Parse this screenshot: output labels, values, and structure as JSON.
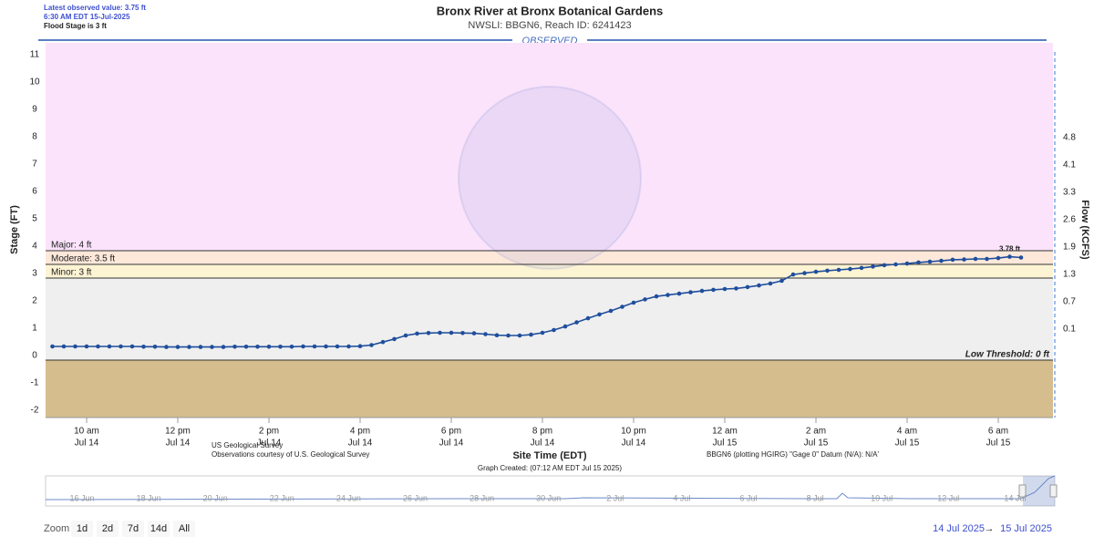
{
  "chart_data": {
    "type": "line",
    "title": "Bronx River at Bronx Botanical Gardens",
    "subtitle": "NWSLI: BBGN6, Reach ID: 6241423",
    "latest_value": "Latest observed value: 3.75 ft",
    "latest_time": "6:30 AM EDT 15-Jul-2025",
    "flood_stage": "Flood Stage is 3 ft",
    "section_label": "OBSERVED",
    "ylabel": "Stage (FT)",
    "y2label": "Flow (KCFS)",
    "xlabel": "Site Time (EDT)",
    "ylim": [
      -2.1,
      11.6
    ],
    "yticks": [
      -2,
      -1,
      0,
      1,
      2,
      3,
      4,
      5,
      6,
      7,
      8,
      9,
      10,
      11
    ],
    "y2ticks": [
      0.1,
      0.7,
      1.3,
      1.9,
      2.6,
      3.3,
      4.1,
      4.8
    ],
    "y2_tick_stages": [
      1,
      2,
      3,
      4,
      5,
      6,
      7,
      8
    ],
    "xlim": [
      "2025-07-14T09:06",
      "2025-07-15T07:12"
    ],
    "xticks": [
      {
        "value": "2025-07-14T10:00",
        "label": "10 am",
        "date": "Jul 14"
      },
      {
        "value": "2025-07-14T12:00",
        "label": "12 pm",
        "date": "Jul 14"
      },
      {
        "value": "2025-07-14T14:00",
        "label": "2 pm",
        "date": "Jul 14"
      },
      {
        "value": "2025-07-14T16:00",
        "label": "4 pm",
        "date": "Jul 14"
      },
      {
        "value": "2025-07-14T18:00",
        "label": "6 pm",
        "date": "Jul 14"
      },
      {
        "value": "2025-07-14T20:00",
        "label": "8 pm",
        "date": "Jul 14"
      },
      {
        "value": "2025-07-14T22:00",
        "label": "10 pm",
        "date": "Jul 14"
      },
      {
        "value": "2025-07-15T00:00",
        "label": "12 am",
        "date": "Jul 15"
      },
      {
        "value": "2025-07-15T02:00",
        "label": "2 am",
        "date": "Jul 15"
      },
      {
        "value": "2025-07-15T04:00",
        "label": "4 am",
        "date": "Jul 15"
      },
      {
        "value": "2025-07-15T06:00",
        "label": "6 am",
        "date": "Jul 15"
      }
    ],
    "flood_levels": [
      {
        "label": "Major: 4 ft",
        "value": 4,
        "color": "#fbe3fb"
      },
      {
        "label": "Moderate: 3.5 ft",
        "value": 3.5,
        "color": "#fde8da"
      },
      {
        "label": "Minor: 3 ft",
        "value": 3,
        "color": "#fdf4d4"
      },
      {
        "label": "Low Threshold: 0 ft",
        "value": 0,
        "color": "#efefef",
        "below_color": "#d5bd8d"
      }
    ],
    "x": [
      "2025-07-14T09:15",
      "2025-07-14T09:30",
      "2025-07-14T09:45",
      "2025-07-14T10:00",
      "2025-07-14T10:15",
      "2025-07-14T10:30",
      "2025-07-14T10:45",
      "2025-07-14T11:00",
      "2025-07-14T11:15",
      "2025-07-14T11:30",
      "2025-07-14T11:45",
      "2025-07-14T12:00",
      "2025-07-14T12:15",
      "2025-07-14T12:30",
      "2025-07-14T12:45",
      "2025-07-14T13:00",
      "2025-07-14T13:15",
      "2025-07-14T13:30",
      "2025-07-14T13:45",
      "2025-07-14T14:00",
      "2025-07-14T14:15",
      "2025-07-14T14:30",
      "2025-07-14T14:45",
      "2025-07-14T15:00",
      "2025-07-14T15:15",
      "2025-07-14T15:30",
      "2025-07-14T15:45",
      "2025-07-14T16:00",
      "2025-07-14T16:15",
      "2025-07-14T16:30",
      "2025-07-14T16:45",
      "2025-07-14T17:00",
      "2025-07-14T17:15",
      "2025-07-14T17:30",
      "2025-07-14T17:45",
      "2025-07-14T18:00",
      "2025-07-14T18:15",
      "2025-07-14T18:30",
      "2025-07-14T18:45",
      "2025-07-14T19:00",
      "2025-07-14T19:15",
      "2025-07-14T19:30",
      "2025-07-14T19:45",
      "2025-07-14T20:00",
      "2025-07-14T20:15",
      "2025-07-14T20:30",
      "2025-07-14T20:45",
      "2025-07-14T21:00",
      "2025-07-14T21:15",
      "2025-07-14T21:30",
      "2025-07-14T21:45",
      "2025-07-14T22:00",
      "2025-07-14T22:15",
      "2025-07-14T22:30",
      "2025-07-14T22:45",
      "2025-07-14T23:00",
      "2025-07-14T23:15",
      "2025-07-14T23:30",
      "2025-07-14T23:45",
      "2025-07-15T00:00",
      "2025-07-15T00:15",
      "2025-07-15T00:30",
      "2025-07-15T00:45",
      "2025-07-15T01:00",
      "2025-07-15T01:15",
      "2025-07-15T01:30",
      "2025-07-15T01:45",
      "2025-07-15T02:00",
      "2025-07-15T02:15",
      "2025-07-15T02:30",
      "2025-07-15T02:45",
      "2025-07-15T03:00",
      "2025-07-15T03:15",
      "2025-07-15T03:30",
      "2025-07-15T03:45",
      "2025-07-15T04:00",
      "2025-07-15T04:15",
      "2025-07-15T04:30",
      "2025-07-15T04:45",
      "2025-07-15T05:00",
      "2025-07-15T05:15",
      "2025-07-15T05:30",
      "2025-07-15T05:45",
      "2025-07-15T06:00",
      "2025-07-15T06:15",
      "2025-07-15T06:30"
    ],
    "series": [
      {
        "color": "#1f4e9c",
        "values": [
          0.5,
          0.5,
          0.5,
          0.5,
          0.5,
          0.5,
          0.5,
          0.5,
          0.49,
          0.49,
          0.48,
          0.48,
          0.48,
          0.48,
          0.48,
          0.48,
          0.49,
          0.49,
          0.49,
          0.49,
          0.49,
          0.49,
          0.5,
          0.5,
          0.5,
          0.5,
          0.5,
          0.51,
          0.55,
          0.66,
          0.77,
          0.9,
          0.97,
          0.99,
          1.0,
          1.0,
          0.99,
          0.98,
          0.95,
          0.91,
          0.9,
          0.9,
          0.93,
          1.0,
          1.1,
          1.23,
          1.38,
          1.53,
          1.67,
          1.8,
          1.95,
          2.1,
          2.22,
          2.33,
          2.38,
          2.43,
          2.48,
          2.53,
          2.57,
          2.6,
          2.62,
          2.67,
          2.73,
          2.8,
          2.9,
          3.13,
          3.18,
          3.23,
          3.27,
          3.3,
          3.33,
          3.37,
          3.42,
          3.47,
          3.5,
          3.53,
          3.57,
          3.6,
          3.63,
          3.67,
          3.68,
          3.7,
          3.7,
          3.73,
          3.78,
          3.75
        ]
      }
    ],
    "annotations": [
      {
        "x": "2025-07-15T06:15",
        "y": 3.78,
        "label": "3.78 ft"
      }
    ],
    "footer": {
      "source": "US Geological Survey",
      "courtesy": "Observations courtesy of U.S. Geological Survey",
      "created": "Graph Created: (07:12 AM EDT Jul 15 2025)",
      "datum": "BBGN6 (plotting HGIRG) \"Gage 0\" Datum (N/A): N/A'"
    },
    "navigator_labels": [
      "16 Jun",
      "18 Jun",
      "20 Jun",
      "22 Jun",
      "24 Jun",
      "26 Jun",
      "28 Jun",
      "30 Jun",
      "2 Jul",
      "4 Jul",
      "6 Jul",
      "8 Jul",
      "10 Jul",
      "12 Jul",
      "14 Jul"
    ],
    "range_selector": {
      "label": "Zoom",
      "buttons": [
        "1d",
        "2d",
        "7d",
        "14d",
        "All"
      ],
      "from": "14 Jul 2025",
      "separator": "→",
      "to": "15 Jul 2025"
    }
  }
}
